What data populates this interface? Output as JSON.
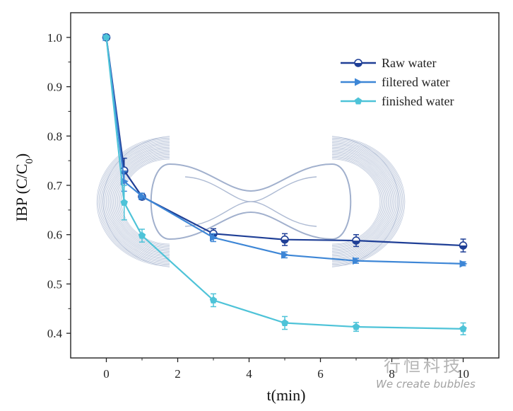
{
  "chart_data": {
    "type": "line",
    "title": "",
    "xlabel": "t(min)",
    "ylabel": "IBP (C/C₀)",
    "xlim": [
      -1,
      11
    ],
    "ylim": [
      0.35,
      1.05
    ],
    "xticks": [
      0,
      2,
      4,
      6,
      8,
      10
    ],
    "yticks": [
      0.4,
      0.5,
      0.6,
      0.7,
      0.8,
      0.9,
      1.0
    ],
    "xtick_labels": [
      "0",
      "2",
      "4",
      "6",
      "8",
      "10"
    ],
    "ytick_labels": [
      "0.4",
      "0.5",
      "0.6",
      "0.7",
      "0.8",
      "0.9",
      "1.0"
    ],
    "legend_position": "top-right",
    "grid": false,
    "series": [
      {
        "name": "Raw water",
        "color": "#1f3f96",
        "marker": "circle",
        "x": [
          0,
          0.5,
          1,
          3,
          5,
          7,
          10
        ],
        "y": [
          1.0,
          0.73,
          0.677,
          0.602,
          0.59,
          0.588,
          0.578
        ],
        "err": [
          0,
          0.025,
          0.006,
          0.01,
          0.012,
          0.012,
          0.013
        ]
      },
      {
        "name": "filtered water",
        "color": "#3d86d6",
        "marker": "triangle-right",
        "x": [
          0,
          0.5,
          1,
          3,
          5,
          7,
          10
        ],
        "y": [
          1.0,
          0.708,
          0.678,
          0.594,
          0.559,
          0.547,
          0.541
        ],
        "err": [
          0,
          0.02,
          0.006,
          0.008,
          0.006,
          0.005,
          0.004
        ]
      },
      {
        "name": "finished water",
        "color": "#4ec3d8",
        "marker": "pentagon",
        "x": [
          0,
          0.5,
          1,
          3,
          5,
          7,
          10
        ],
        "y": [
          1.0,
          0.665,
          0.598,
          0.467,
          0.421,
          0.413,
          0.409
        ],
        "err": [
          0,
          0.035,
          0.013,
          0.013,
          0.013,
          0.009,
          0.012
        ]
      }
    ]
  },
  "watermark": {
    "chinese": "行恒科技",
    "english": "We create bubbles",
    "color": "#8a9cc0"
  }
}
